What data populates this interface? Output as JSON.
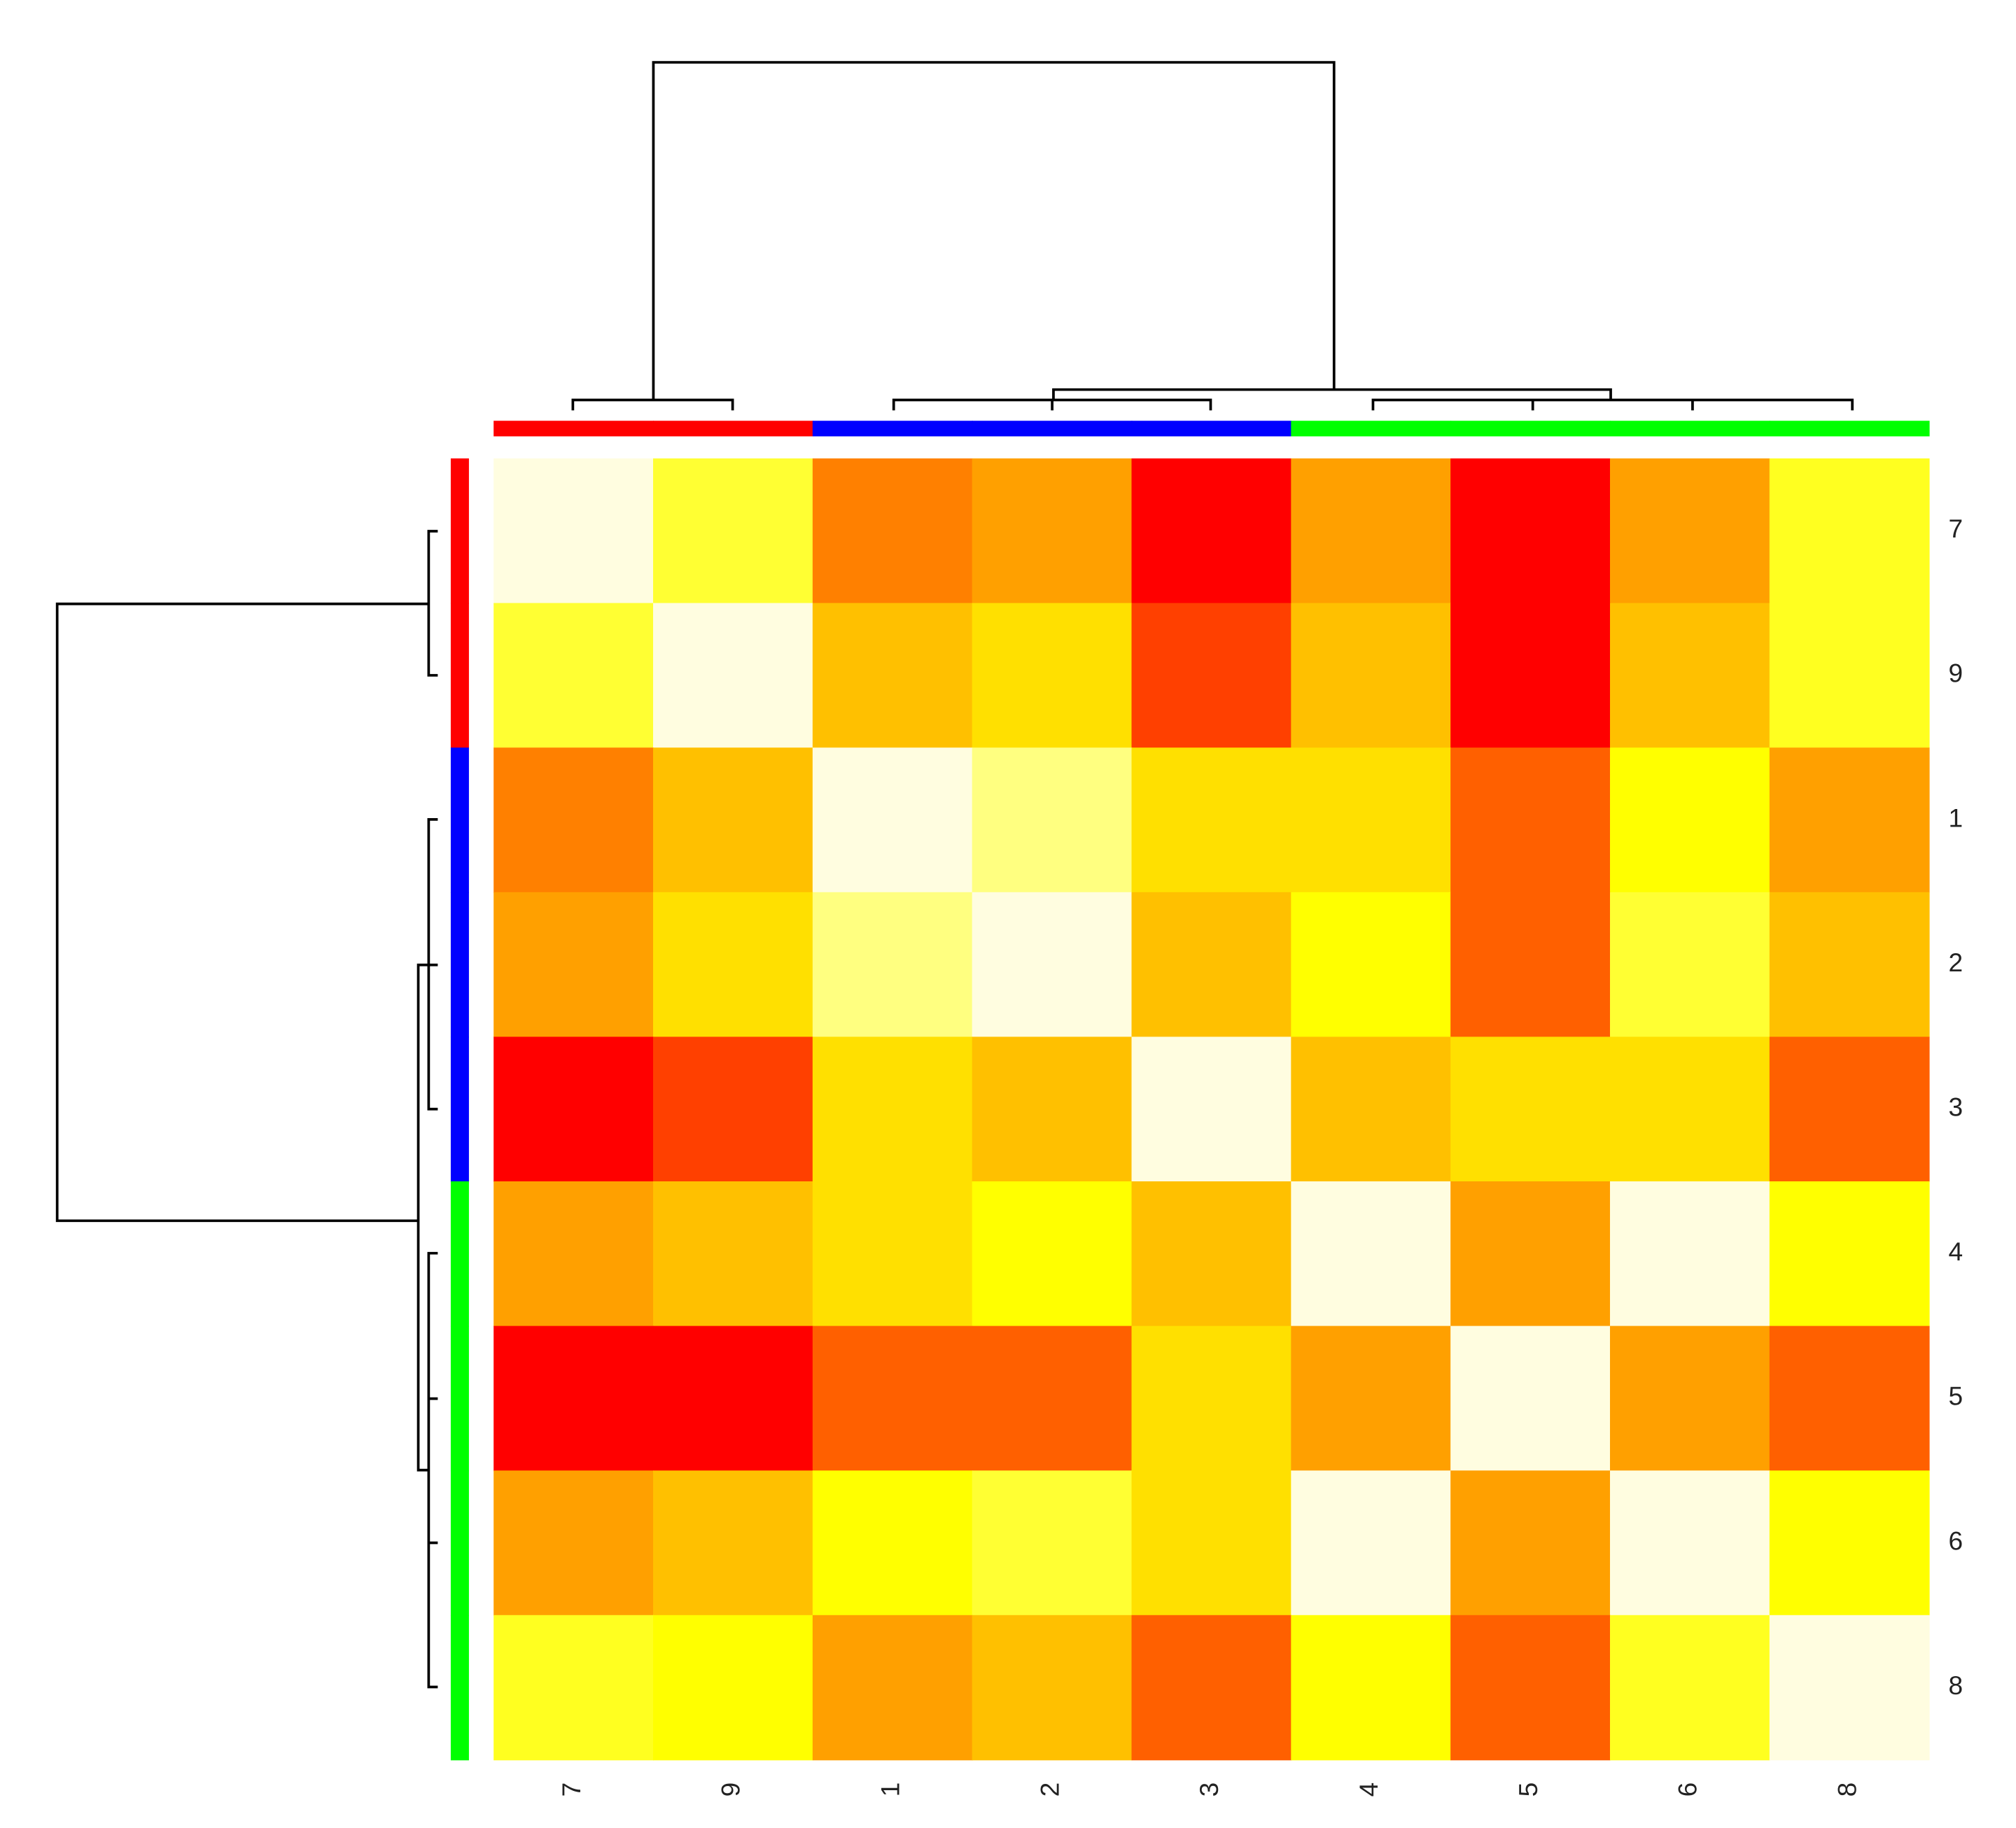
{
  "chart_data": {
    "type": "heatmap",
    "columns": [
      "7",
      "9",
      "1",
      "2",
      "3",
      "4",
      "5",
      "6",
      "8"
    ],
    "rows": [
      "7",
      "9",
      "1",
      "2",
      "3",
      "4",
      "5",
      "6",
      "8"
    ],
    "column_groups": [
      "#ff0000",
      "#ff0000",
      "#0000ff",
      "#0000ff",
      "#0000ff",
      "#00ff00",
      "#00ff00",
      "#00ff00",
      "#00ff00"
    ],
    "row_groups": [
      "#ff0000",
      "#ff0000",
      "#0000ff",
      "#0000ff",
      "#0000ff",
      "#00ff00",
      "#00ff00",
      "#00ff00",
      "#00ff00"
    ],
    "cells": [
      [
        "#fffde0",
        "#ffff33",
        "#ff8000",
        "#ffa000",
        "#ff0000",
        "#ffa000",
        "#ff0000",
        "#ffa000",
        "#ffff20"
      ],
      [
        "#ffff33",
        "#fffde0",
        "#ffc000",
        "#ffe000",
        "#ff4000",
        "#ffc000",
        "#ff0000",
        "#ffc000",
        "#ffff20"
      ],
      [
        "#ff8000",
        "#ffc000",
        "#fffde0",
        "#ffff80",
        "#ffe000",
        "#ffe000",
        "#ff6000",
        "#ffff00",
        "#ffa000"
      ],
      [
        "#ffa000",
        "#ffe000",
        "#ffff80",
        "#fffde0",
        "#ffc000",
        "#ffff00",
        "#ff6000",
        "#ffff33",
        "#ffc000"
      ],
      [
        "#ff0000",
        "#ff4000",
        "#ffe000",
        "#ffc000",
        "#fffde0",
        "#ffc000",
        "#ffe000",
        "#ffe000",
        "#ff6000"
      ],
      [
        "#ffa000",
        "#ffc000",
        "#ffe000",
        "#ffff00",
        "#ffc000",
        "#fffde0",
        "#ffa000",
        "#fffde0",
        "#ffff00"
      ],
      [
        "#ff0000",
        "#ff0000",
        "#ff6000",
        "#ff6000",
        "#ffe000",
        "#ffa000",
        "#fffde0",
        "#ffa000",
        "#ff6000"
      ],
      [
        "#ffa000",
        "#ffc000",
        "#ffff00",
        "#ffff33",
        "#ffe000",
        "#fffde0",
        "#ffa000",
        "#fffde0",
        "#ffff00"
      ],
      [
        "#ffff20",
        "#ffff00",
        "#ffa000",
        "#ffc000",
        "#ff6000",
        "#ffff00",
        "#ff6000",
        "#ffff20",
        "#fffde0"
      ]
    ]
  }
}
